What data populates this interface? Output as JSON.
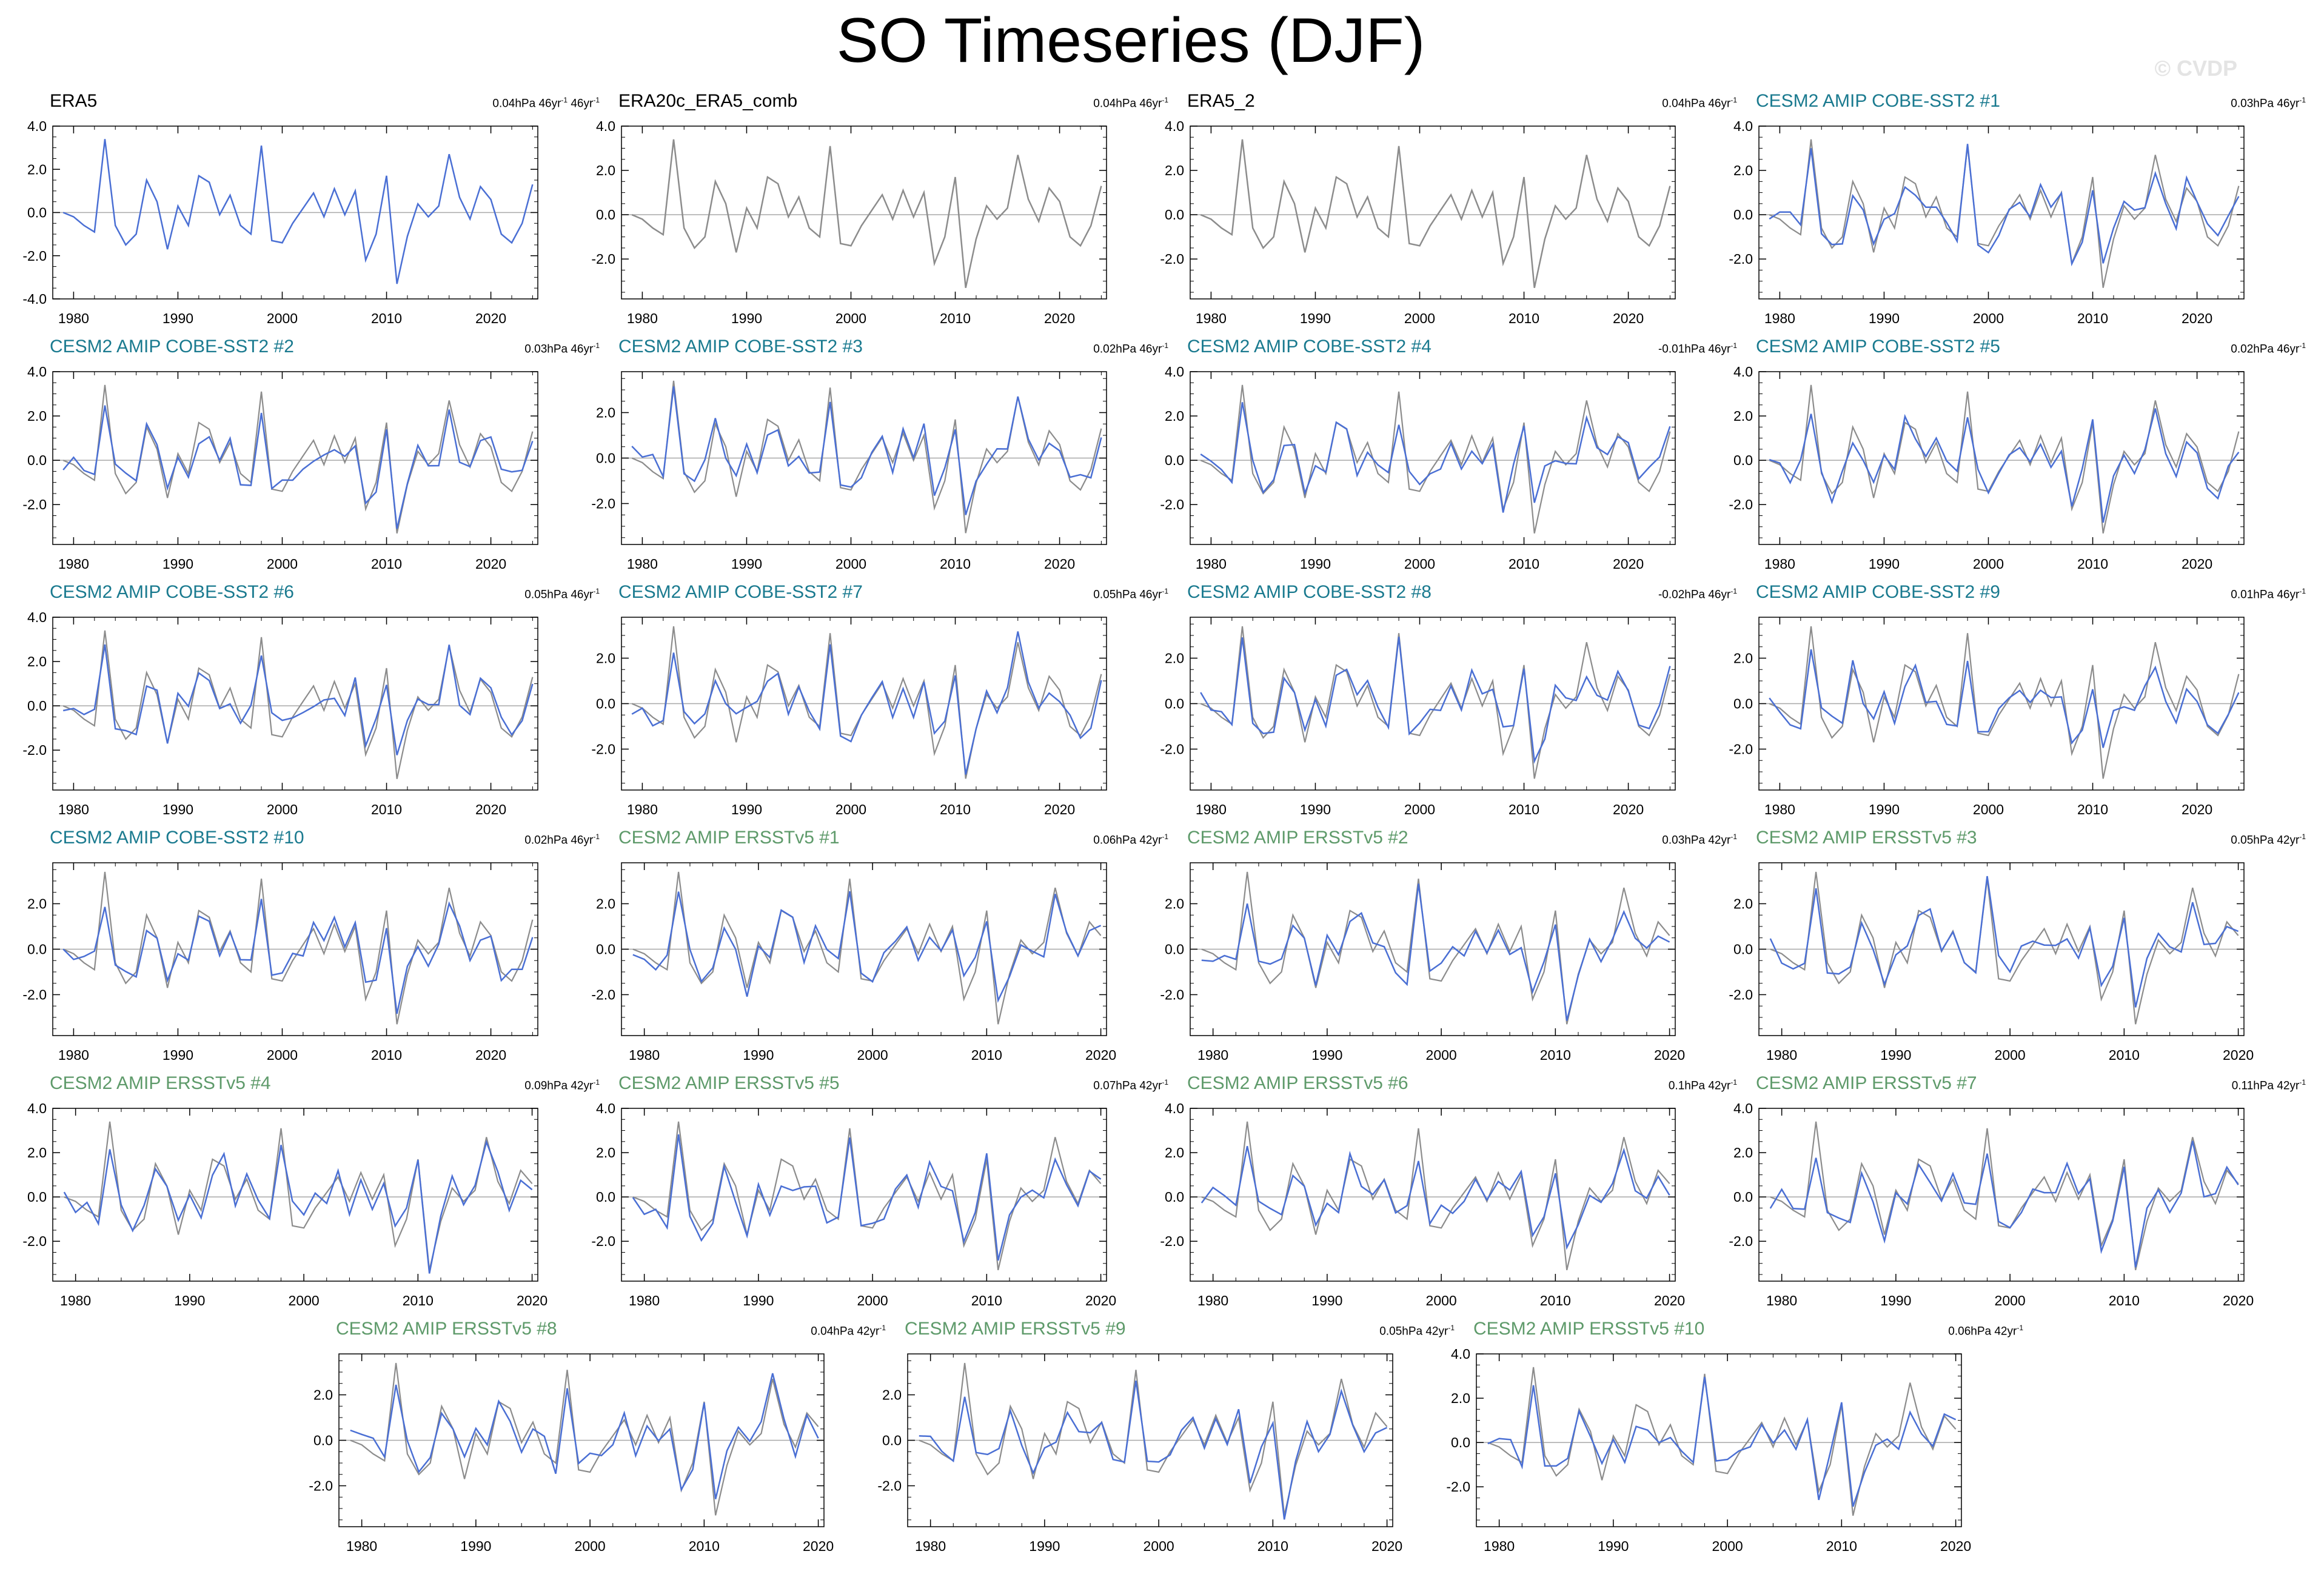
{
  "title": "SO Timeseries (DJF)",
  "watermark": "© CVDP",
  "colors": {
    "model_line": "#4a6fd4",
    "obs_line": "#8c8c8c",
    "zero_line": "#a8a8a8",
    "title_obs": "#000000",
    "title_cobe": "#1a7a8f",
    "title_ersst": "#5e9a6a"
  },
  "base_series": {
    "years": [
      1979,
      1980,
      1981,
      1982,
      1983,
      1984,
      1985,
      1986,
      1987,
      1988,
      1989,
      1990,
      1991,
      1992,
      1993,
      1994,
      1995,
      1996,
      1997,
      1998,
      1999,
      2000,
      2001,
      2002,
      2003,
      2004,
      2005,
      2006,
      2007,
      2008,
      2009,
      2010,
      2011,
      2012,
      2013,
      2014,
      2015,
      2016,
      2017,
      2018,
      2019,
      2020,
      2021,
      2022,
      2023,
      2024
    ],
    "values": [
      0.0,
      -0.2,
      -0.6,
      -0.9,
      3.4,
      -0.6,
      -1.5,
      -1.0,
      1.5,
      0.5,
      -1.7,
      0.3,
      -0.6,
      1.7,
      1.4,
      -0.1,
      0.8,
      -0.6,
      -1.0,
      3.1,
      -1.3,
      -1.4,
      -0.5,
      0.2,
      0.9,
      -0.2,
      1.1,
      -0.1,
      1.0,
      -2.2,
      -1.0,
      1.7,
      -3.3,
      -1.1,
      0.4,
      -0.2,
      0.3,
      2.7,
      0.7,
      -0.3,
      1.2,
      0.6,
      -1.0,
      -1.4,
      -0.5,
      1.3
    ]
  },
  "panels": [
    {
      "title": "ERA5",
      "kind": "obs",
      "stat": "0.04hPa 46yr",
      "stat_sup": "-1",
      "stat_extra": " 46yr",
      "stat_extra_sup": "-1",
      "years": [
        1979,
        2024
      ],
      "seed": 0,
      "ylim": [
        -4,
        4
      ],
      "yticks": [
        "4.0",
        "2.0",
        "0.0",
        "-2.0",
        "-4.0"
      ],
      "xticks": [
        "1980",
        "1990",
        "2000",
        "2010",
        "2020"
      ]
    },
    {
      "title": "ERA20c_ERA5_comb",
      "kind": "obs",
      "stat": "0.04hPa 46yr",
      "stat_sup": "-1",
      "years": [
        1979,
        2024
      ],
      "seed": 0,
      "ylim": [
        -3.8,
        4.0
      ],
      "yticks": [
        "4.0",
        "2.0",
        "0.0",
        "-2.0"
      ],
      "xticks": [
        "1980",
        "1990",
        "2000",
        "2010",
        "2020"
      ]
    },
    {
      "title": "ERA5_2",
      "kind": "obs",
      "stat": "0.04hPa 46yr",
      "stat_sup": "-1",
      "years": [
        1979,
        2024
      ],
      "seed": 0,
      "ylim": [
        -3.8,
        4.0
      ],
      "yticks": [
        "4.0",
        "2.0",
        "0.0",
        "-2.0"
      ],
      "xticks": [
        "1980",
        "1990",
        "2000",
        "2010",
        "2020"
      ]
    },
    {
      "title": "CESM2 AMIP COBE-SST2 #1",
      "kind": "cobe",
      "stat": "0.03hPa 46yr",
      "stat_sup": "-1",
      "years": [
        1979,
        2024
      ],
      "seed": 1,
      "ylim": [
        -3.8,
        4.0
      ],
      "yticks": [
        "4.0",
        "2.0",
        "0.0",
        "-2.0"
      ],
      "xticks": [
        "1980",
        "1990",
        "2000",
        "2010",
        "2020"
      ]
    },
    {
      "title": "CESM2 AMIP COBE-SST2 #2",
      "kind": "cobe",
      "stat": "0.03hPa 46yr",
      "stat_sup": "-1",
      "years": [
        1979,
        2024
      ],
      "seed": 2,
      "ylim": [
        -3.8,
        4.0
      ],
      "yticks": [
        "4.0",
        "2.0",
        "0.0",
        "-2.0"
      ],
      "xticks": [
        "1980",
        "1990",
        "2000",
        "2010",
        "2020"
      ]
    },
    {
      "title": "CESM2 AMIP COBE-SST2 #3",
      "kind": "cobe",
      "stat": "0.02hPa 46yr",
      "stat_sup": "-1",
      "years": [
        1979,
        2024
      ],
      "seed": 3,
      "ylim": [
        -3.8,
        3.8
      ],
      "yticks": [
        "2.0",
        "0.0",
        "-2.0"
      ],
      "xticks": [
        "1980",
        "1990",
        "2000",
        "2010",
        "2020"
      ]
    },
    {
      "title": "CESM2 AMIP COBE-SST2 #4",
      "kind": "cobe",
      "stat": "-0.01hPa 46yr",
      "stat_sup": "-1",
      "years": [
        1979,
        2024
      ],
      "seed": 4,
      "ylim": [
        -3.8,
        4.0
      ],
      "yticks": [
        "4.0",
        "2.0",
        "0.0",
        "-2.0"
      ],
      "xticks": [
        "1980",
        "1990",
        "2000",
        "2010",
        "2020"
      ]
    },
    {
      "title": "CESM2 AMIP COBE-SST2 #5",
      "kind": "cobe",
      "stat": "0.02hPa 46yr",
      "stat_sup": "-1",
      "years": [
        1979,
        2024
      ],
      "seed": 5,
      "ylim": [
        -3.8,
        4.0
      ],
      "yticks": [
        "4.0",
        "2.0",
        "0.0",
        "-2.0"
      ],
      "xticks": [
        "1980",
        "1990",
        "2000",
        "2010",
        "2020"
      ]
    },
    {
      "title": "CESM2 AMIP COBE-SST2 #6",
      "kind": "cobe",
      "stat": "0.05hPa 46yr",
      "stat_sup": "-1",
      "years": [
        1979,
        2024
      ],
      "seed": 6,
      "ylim": [
        -3.8,
        4.0
      ],
      "yticks": [
        "4.0",
        "2.0",
        "0.0",
        "-2.0"
      ],
      "xticks": [
        "1980",
        "1990",
        "2000",
        "2010",
        "2020"
      ]
    },
    {
      "title": "CESM2 AMIP COBE-SST2 #7",
      "kind": "cobe",
      "stat": "0.05hPa 46yr",
      "stat_sup": "-1",
      "years": [
        1979,
        2024
      ],
      "seed": 7,
      "ylim": [
        -3.8,
        3.8
      ],
      "yticks": [
        "2.0",
        "0.0",
        "-2.0"
      ],
      "xticks": [
        "1980",
        "1990",
        "2000",
        "2010",
        "2020"
      ]
    },
    {
      "title": "CESM2 AMIP COBE-SST2 #8",
      "kind": "cobe",
      "stat": "-0.02hPa 46yr",
      "stat_sup": "-1",
      "years": [
        1979,
        2024
      ],
      "seed": 8,
      "ylim": [
        -3.8,
        3.8
      ],
      "yticks": [
        "2.0",
        "0.0",
        "-2.0"
      ],
      "xticks": [
        "1980",
        "1990",
        "2000",
        "2010",
        "2020"
      ]
    },
    {
      "title": "CESM2 AMIP COBE-SST2 #9",
      "kind": "cobe",
      "stat": "0.01hPa 46yr",
      "stat_sup": "-1",
      "years": [
        1979,
        2024
      ],
      "seed": 9,
      "ylim": [
        -3.8,
        3.8
      ],
      "yticks": [
        "2.0",
        "0.0",
        "-2.0"
      ],
      "xticks": [
        "1980",
        "1990",
        "2000",
        "2010",
        "2020"
      ]
    },
    {
      "title": "CESM2 AMIP COBE-SST2 #10",
      "kind": "cobe",
      "stat": "0.02hPa 46yr",
      "stat_sup": "-1",
      "years": [
        1979,
        2024
      ],
      "seed": 10,
      "ylim": [
        -3.8,
        3.8
      ],
      "yticks": [
        "2.0",
        "0.0",
        "-2.0"
      ],
      "xticks": [
        "1980",
        "1990",
        "2000",
        "2010",
        "2020"
      ]
    },
    {
      "title": "CESM2 AMIP ERSSTv5 #1",
      "kind": "ersst",
      "stat": "0.06hPa 42yr",
      "stat_sup": "-1",
      "years": [
        1979,
        2020
      ],
      "seed": 11,
      "ylim": [
        -3.8,
        3.8
      ],
      "yticks": [
        "2.0",
        "0.0",
        "-2.0"
      ],
      "xticks": [
        "1980",
        "1990",
        "2000",
        "2010",
        "2020"
      ]
    },
    {
      "title": "CESM2 AMIP ERSSTv5 #2",
      "kind": "ersst",
      "stat": "0.03hPa 42yr",
      "stat_sup": "-1",
      "years": [
        1979,
        2020
      ],
      "seed": 12,
      "ylim": [
        -3.8,
        3.8
      ],
      "yticks": [
        "2.0",
        "0.0",
        "-2.0"
      ],
      "xticks": [
        "1980",
        "1990",
        "2000",
        "2010",
        "2020"
      ]
    },
    {
      "title": "CESM2 AMIP ERSSTv5 #3",
      "kind": "ersst",
      "stat": "0.05hPa 42yr",
      "stat_sup": "-1",
      "years": [
        1979,
        2020
      ],
      "seed": 13,
      "ylim": [
        -3.8,
        3.8
      ],
      "yticks": [
        "2.0",
        "0.0",
        "-2.0"
      ],
      "xticks": [
        "1980",
        "1990",
        "2000",
        "2010",
        "2020"
      ]
    },
    {
      "title": "CESM2 AMIP ERSSTv5 #4",
      "kind": "ersst",
      "stat": "0.09hPa 42yr",
      "stat_sup": "-1",
      "years": [
        1979,
        2020
      ],
      "seed": 14,
      "ylim": [
        -3.8,
        4.0
      ],
      "yticks": [
        "4.0",
        "2.0",
        "0.0",
        "-2.0"
      ],
      "xticks": [
        "1980",
        "1990",
        "2000",
        "2010",
        "2020"
      ]
    },
    {
      "title": "CESM2 AMIP ERSSTv5 #5",
      "kind": "ersst",
      "stat": "0.07hPa 42yr",
      "stat_sup": "-1",
      "years": [
        1979,
        2020
      ],
      "seed": 15,
      "ylim": [
        -3.8,
        4.0
      ],
      "yticks": [
        "4.0",
        "2.0",
        "0.0",
        "-2.0"
      ],
      "xticks": [
        "1980",
        "1990",
        "2000",
        "2010",
        "2020"
      ]
    },
    {
      "title": "CESM2 AMIP ERSSTv5 #6",
      "kind": "ersst",
      "stat": "0.1hPa 42yr",
      "stat_sup": "-1",
      "years": [
        1979,
        2020
      ],
      "seed": 16,
      "ylim": [
        -3.8,
        4.0
      ],
      "yticks": [
        "4.0",
        "2.0",
        "0.0",
        "-2.0"
      ],
      "xticks": [
        "1980",
        "1990",
        "2000",
        "2010",
        "2020"
      ]
    },
    {
      "title": "CESM2 AMIP ERSSTv5 #7",
      "kind": "ersst",
      "stat": "0.11hPa 42yr",
      "stat_sup": "-1",
      "years": [
        1979,
        2020
      ],
      "seed": 17,
      "ylim": [
        -3.8,
        4.0
      ],
      "yticks": [
        "4.0",
        "2.0",
        "0.0",
        "-2.0"
      ],
      "xticks": [
        "1980",
        "1990",
        "2000",
        "2010",
        "2020"
      ]
    },
    {
      "title": "CESM2 AMIP ERSSTv5 #8",
      "kind": "ersst",
      "stat": "0.04hPa 42yr",
      "stat_sup": "-1",
      "years": [
        1979,
        2020
      ],
      "seed": 18,
      "ylim": [
        -3.8,
        3.8
      ],
      "yticks": [
        "2.0",
        "0.0",
        "-2.0"
      ],
      "xticks": [
        "1980",
        "1990",
        "2000",
        "2010",
        "2020"
      ]
    },
    {
      "title": "CESM2 AMIP ERSSTv5 #9",
      "kind": "ersst",
      "stat": "0.05hPa 42yr",
      "stat_sup": "-1",
      "years": [
        1979,
        2020
      ],
      "seed": 19,
      "ylim": [
        -3.8,
        3.8
      ],
      "yticks": [
        "2.0",
        "0.0",
        "-2.0"
      ],
      "xticks": [
        "1980",
        "1990",
        "2000",
        "2010",
        "2020"
      ]
    },
    {
      "title": "CESM2 AMIP ERSSTv5 #10",
      "kind": "ersst",
      "stat": "0.06hPa 42yr",
      "stat_sup": "-1",
      "years": [
        1979,
        2020
      ],
      "seed": 20,
      "ylim": [
        -3.8,
        4.0
      ],
      "yticks": [
        "4.0",
        "2.0",
        "0.0",
        "-2.0"
      ],
      "xticks": [
        "1980",
        "1990",
        "2000",
        "2010",
        "2020"
      ]
    }
  ],
  "chart_data": {
    "type": "line",
    "title": "SO Timeseries (DJF)",
    "xlabel": "",
    "ylabel": "",
    "x": [
      1979,
      1980,
      1981,
      1982,
      1983,
      1984,
      1985,
      1986,
      1987,
      1988,
      1989,
      1990,
      1991,
      1992,
      1993,
      1994,
      1995,
      1996,
      1997,
      1998,
      1999,
      2000,
      2001,
      2002,
      2003,
      2004,
      2005,
      2006,
      2007,
      2008,
      2009,
      2010,
      2011,
      2012,
      2013,
      2014,
      2015,
      2016,
      2017,
      2018,
      2019,
      2020,
      2021,
      2022,
      2023,
      2024
    ],
    "series": [
      {
        "name": "ERA5",
        "values": [
          0.0,
          -0.2,
          -0.6,
          -0.9,
          3.4,
          -0.6,
          -1.5,
          -1.0,
          1.5,
          0.5,
          -1.7,
          0.3,
          -0.6,
          1.7,
          1.4,
          -0.1,
          0.8,
          -0.6,
          -1.0,
          3.1,
          -1.3,
          -1.4,
          -0.5,
          0.2,
          0.9,
          -0.2,
          1.1,
          -0.1,
          1.0,
          -2.2,
          -1.0,
          1.7,
          -3.3,
          -1.1,
          0.4,
          -0.2,
          0.3,
          2.7,
          0.7,
          -0.3,
          1.2,
          0.6,
          -1.0,
          -1.4,
          -0.5,
          1.3
        ]
      }
    ],
    "ylim": [
      -4,
      4
    ],
    "grid": false,
    "legend": "none"
  }
}
